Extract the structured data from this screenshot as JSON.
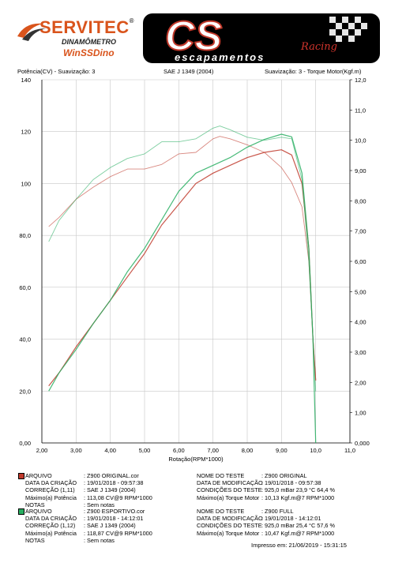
{
  "header": {
    "brand": "SERVITEC",
    "reg_mark": "®",
    "subtitle1": "DINAMÔMETRO",
    "subtitle2": "WinSSDino",
    "cs_logo_text": "CS",
    "cs_logo_sub": "escapamentos",
    "cs_logo_script": "Racing"
  },
  "labels": {
    "left": "Potência(CV) - Suavização: 3",
    "center": "SAE J 1349 (2004)",
    "right": "Suavização: 3 - Torque Motor(Kgf.m)"
  },
  "colors": {
    "run1": "#c0392b",
    "run2": "#27ae60",
    "axis": "#000000",
    "grid": "#c8c8c8"
  },
  "chart_data": {
    "type": "line",
    "xlabel": "Rotação(RPM*1000)",
    "x_ticks": [
      "2,00",
      "3,00",
      "4,00",
      "5,00",
      "6,00",
      "7,00",
      "8,00",
      "9,00",
      "10,0",
      "11,0"
    ],
    "xlim": [
      2.0,
      11.0
    ],
    "y_left_ticks": [
      "0,00",
      "20,0",
      "40,0",
      "60,0",
      "80,0",
      "100",
      "120",
      "140"
    ],
    "ylim_left": [
      0,
      140
    ],
    "y_right_ticks": [
      "0,000",
      "1,00",
      "2,00",
      "3,00",
      "4,00",
      "5,00",
      "6,00",
      "7,00",
      "8,00",
      "9,00",
      "10,0",
      "11,0",
      "12,0"
    ],
    "ylim_right": [
      0,
      12
    ],
    "grid": true,
    "series": [
      {
        "name": "Z900 ORIGINAL",
        "axis": "left",
        "kind": "power",
        "color": "#c0392b",
        "x": [
          2.2,
          2.5,
          3.0,
          3.5,
          4.0,
          4.5,
          5.0,
          5.5,
          6.0,
          6.5,
          7.0,
          7.5,
          8.0,
          8.5,
          9.0,
          9.3,
          9.6,
          9.8,
          9.92,
          10.0
        ],
        "y": [
          22,
          27,
          37,
          46,
          55,
          64,
          73,
          84,
          92,
          100,
          104,
          107,
          110,
          112,
          113,
          111,
          100,
          75,
          40,
          24
        ]
      },
      {
        "name": "Z900 ORIGINAL",
        "axis": "right",
        "kind": "torque",
        "color": "#c0392b",
        "x": [
          2.2,
          2.5,
          3.0,
          3.5,
          4.0,
          4.5,
          5.0,
          5.5,
          6.0,
          6.5,
          7.0,
          7.2,
          7.5,
          8.0,
          8.5,
          9.0,
          9.3,
          9.6,
          9.8,
          9.92,
          10.0
        ],
        "y": [
          7.15,
          7.45,
          8.05,
          8.45,
          8.8,
          9.05,
          9.05,
          9.2,
          9.55,
          9.6,
          10.05,
          10.13,
          10.05,
          9.85,
          9.6,
          9.1,
          8.6,
          7.8,
          6.0,
          3.5,
          2.1
        ]
      },
      {
        "name": "Z900 FULL",
        "axis": "left",
        "kind": "power",
        "color": "#27ae60",
        "x": [
          2.2,
          2.5,
          3.0,
          3.5,
          4.0,
          4.5,
          5.0,
          5.5,
          6.0,
          6.5,
          7.0,
          7.5,
          8.0,
          8.5,
          9.0,
          9.3,
          9.6,
          9.8,
          9.92,
          10.0
        ],
        "y": [
          20,
          27,
          36,
          46,
          55,
          66,
          75,
          86,
          97,
          104,
          107,
          110,
          114,
          117,
          119,
          118,
          104,
          75,
          40,
          0
        ]
      },
      {
        "name": "Z900 FULL",
        "axis": "right",
        "kind": "torque",
        "color": "#27ae60",
        "x": [
          2.2,
          2.5,
          3.0,
          3.5,
          4.0,
          4.5,
          5.0,
          5.5,
          6.0,
          6.5,
          7.0,
          7.2,
          7.5,
          8.0,
          8.5,
          9.0,
          9.3,
          9.6,
          9.8,
          9.92,
          10.0
        ],
        "y": [
          6.65,
          7.35,
          8.05,
          8.7,
          9.1,
          9.4,
          9.55,
          9.95,
          9.95,
          10.05,
          10.4,
          10.47,
          10.35,
          10.1,
          10.0,
          10.1,
          10.05,
          8.7,
          6.0,
          3.5,
          1.7
        ]
      }
    ]
  },
  "runs": [
    {
      "left": [
        {
          "k": "ARQUIVO",
          "v": ":   Z900 ORIGINAL.cor"
        },
        {
          "k": "DATA DA CRIAÇÃO",
          "v": ":  19/01/2018 - 09:57:38"
        },
        {
          "k": "CORREÇÃO (1,11)",
          "v": ":  SAE J 1349 (2004)"
        },
        {
          "k": "Máximo(a) Potência",
          "v": ":  113,08 CV@9 RPM*1000"
        },
        {
          "k": "NOTAS",
          "v": ":  Sem notas"
        }
      ],
      "right": [
        {
          "k": "NOME DO TESTE",
          "v": ":  Z900 ORIGINAL"
        },
        {
          "k": "DATA DE MODIFICAÇÃO",
          "v": ":  19/01/2018 - 09:57:38"
        },
        {
          "k": "CONDIÇÕES DO TESTE",
          "v": ":  925,0  mBar  23,9  °C  64,4 %"
        },
        {
          "k": "Máximo(a) Torque Motor",
          "v": ":  10,13 Kgf.m@7 RPM*1000"
        }
      ]
    },
    {
      "left": [
        {
          "k": "ARQUIVO",
          "v": ":   Z900 ESPORTIVO.cor"
        },
        {
          "k": "DATA DA CRIAÇÃO",
          "v": ":  19/01/2018 - 14:12:01"
        },
        {
          "k": "CORREÇÃO (1,12)",
          "v": ":  SAE J 1349 (2004)"
        },
        {
          "k": "Máximo(a) Potência",
          "v": ":  118,87 CV@9 RPM*1000"
        },
        {
          "k": "NOTAS",
          "v": ":  Sem notas"
        }
      ],
      "right": [
        {
          "k": "NOME DO TESTE",
          "v": ":  Z900 FULL"
        },
        {
          "k": "DATA DE MODIFICAÇÃO",
          "v": ":  19/01/2018 - 14:12:01"
        },
        {
          "k": "CONDIÇÕES DO TESTE",
          "v": ":  925,0  mBar  25,4  °C  57,6 %"
        },
        {
          "k": "Máximo(a) Torque Motor",
          "v": ":  10,47 Kgf.m@7 RPM*1000"
        }
      ]
    }
  ],
  "printed": "Impresso em: 21/06/2019 - 15:31:15"
}
